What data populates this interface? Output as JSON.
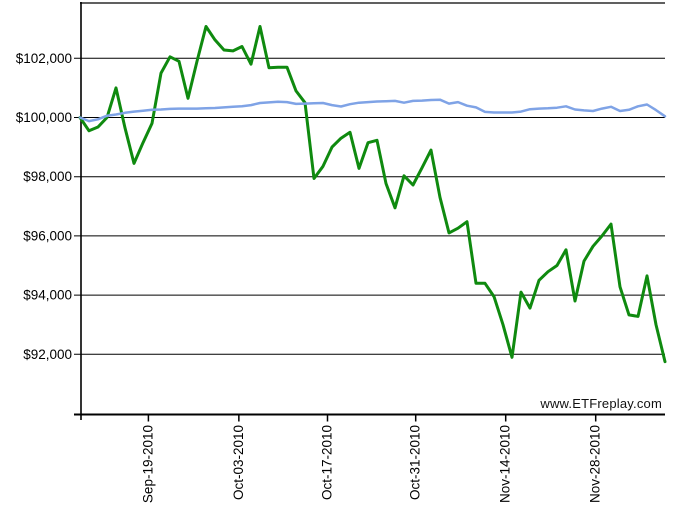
{
  "watermark": "www.ETFreplay.com",
  "chart_data": {
    "type": "line",
    "title": "",
    "xlabel": "",
    "ylabel": "",
    "legend": "none",
    "grid": "horizontal-black-lines",
    "background": "#ffffff",
    "ylim": [
      90000,
      104000
    ],
    "y_ticks": [
      {
        "label": "$102,000",
        "value": 102000
      },
      {
        "label": "$100,000",
        "value": 100000
      },
      {
        "label": "$98,000",
        "value": 98000
      },
      {
        "label": "$96,000",
        "value": 96000
      },
      {
        "label": "$94,000",
        "value": 94000
      },
      {
        "label": "$92,000",
        "value": 92000
      }
    ],
    "x_tick_labels": [
      "Sep-19-2010",
      "Oct-03-2010",
      "Oct-17-2010",
      "Oct-31-2010",
      "Nov-14-2010",
      "Nov-28-2010"
    ],
    "x_tick_day_index": [
      7.6,
      17.65,
      27.5,
      37.3,
      47.3,
      57.3
    ],
    "series": [
      {
        "name": "green-series",
        "color": "#0f8a0f",
        "width": 3,
        "values": [
          100000,
          99550,
          99680,
          100000,
          101000,
          99650,
          98450,
          99150,
          99800,
          101500,
          102050,
          101900,
          100650,
          101900,
          103075,
          102620,
          102280,
          102250,
          102400,
          101800,
          103075,
          101680,
          101700,
          101700,
          100900,
          100500,
          97940,
          98350,
          99000,
          99300,
          99500,
          98280,
          99150,
          99230,
          97770,
          96950,
          98030,
          97720,
          98300,
          98900,
          97300,
          96100,
          96260,
          96480,
          94400,
          94400,
          93950,
          93000,
          91900,
          94100,
          93560,
          94500,
          94790,
          95000,
          95530,
          93800,
          95150,
          95650,
          96000,
          96400,
          94280,
          93330,
          93280,
          94650,
          93000,
          91750
        ]
      },
      {
        "name": "blue-series",
        "color": "#7fa3e6",
        "width": 2.5,
        "values": [
          100000,
          99880,
          99940,
          100060,
          100100,
          100160,
          100200,
          100230,
          100260,
          100270,
          100290,
          100300,
          100300,
          100300,
          100310,
          100320,
          100340,
          100360,
          100380,
          100420,
          100490,
          100510,
          100530,
          100520,
          100460,
          100470,
          100480,
          100490,
          100420,
          100370,
          100450,
          100500,
          100520,
          100540,
          100550,
          100560,
          100500,
          100560,
          100570,
          100590,
          100600,
          100470,
          100520,
          100400,
          100340,
          100190,
          100170,
          100170,
          100170,
          100200,
          100280,
          100300,
          100310,
          100330,
          100380,
          100270,
          100240,
          100220,
          100300,
          100360,
          100220,
          100260,
          100380,
          100440,
          100250,
          100040
        ]
      }
    ]
  }
}
